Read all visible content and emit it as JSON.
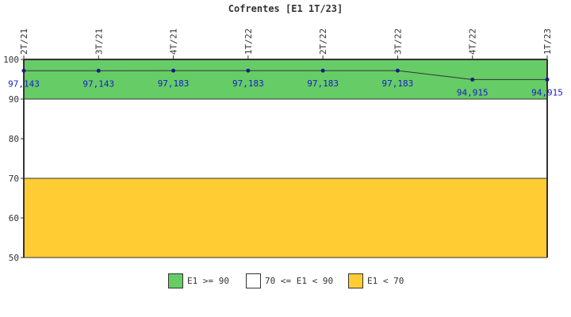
{
  "chart_data": {
    "type": "line",
    "title": "Cofrentes [E1 1T/23]",
    "xlabel": "",
    "ylabel": "",
    "categories": [
      "2T/21",
      "3T/21",
      "4T/21",
      "1T/22",
      "2T/22",
      "3T/22",
      "4T/22",
      "1T/23"
    ],
    "series": [
      {
        "values": [
          97.143,
          97.143,
          97.183,
          97.183,
          97.183,
          97.183,
          94.915,
          94.915
        ],
        "labels": [
          "97,143",
          "97,143",
          "97,183",
          "97,183",
          "97,183",
          "97,183",
          "94,915",
          "94,915"
        ],
        "color": "#1a1a8c"
      }
    ],
    "ylim": [
      50,
      100
    ],
    "yticks": [
      50,
      60,
      70,
      80,
      90,
      100
    ],
    "bands": [
      {
        "from": 90,
        "to": 100,
        "color": "#66cc66",
        "label": "E1 >= 90"
      },
      {
        "from": 70,
        "to": 90,
        "color": "#ffffff",
        "label": "70 <= E1 < 90"
      },
      {
        "from": 50,
        "to": 70,
        "color": "#ffcc33",
        "label": "E1 < 70"
      }
    ],
    "grid": false,
    "legend_position": "bottom"
  }
}
